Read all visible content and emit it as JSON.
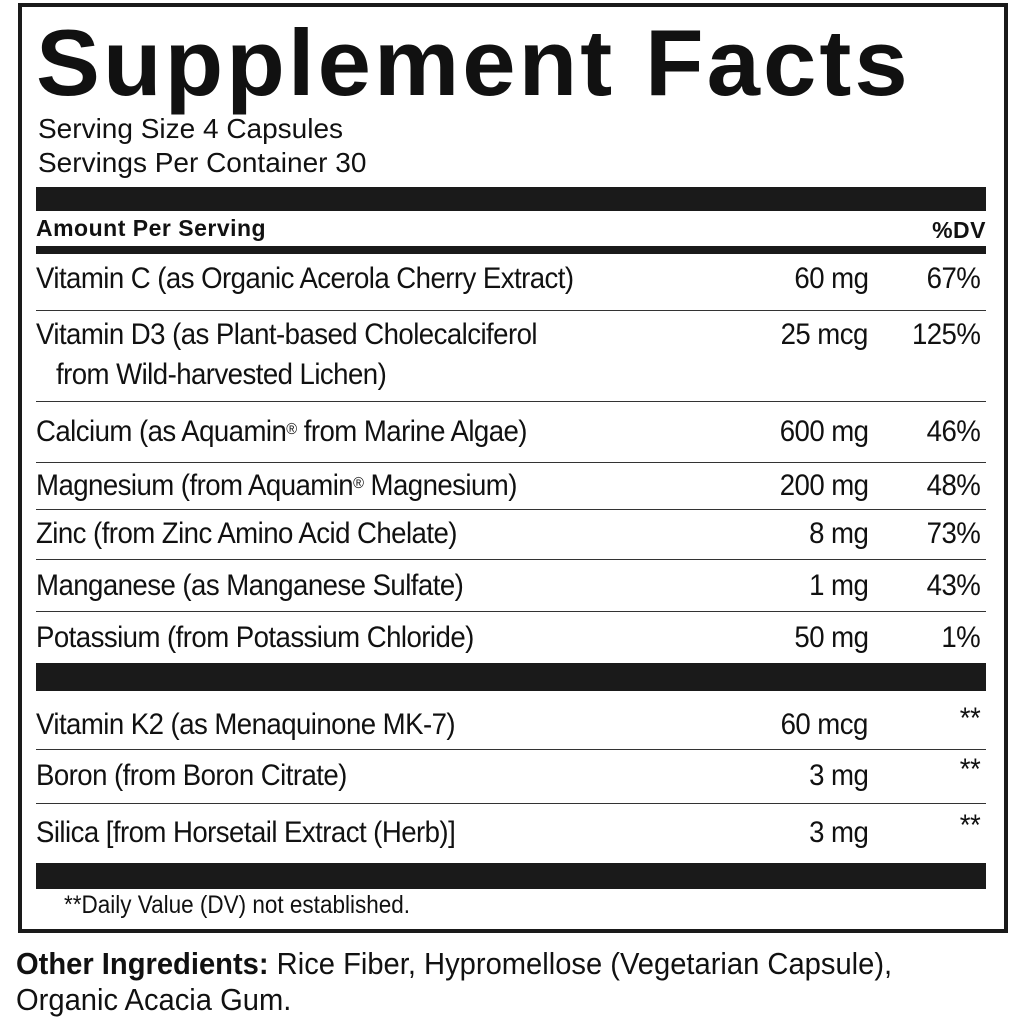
{
  "title": "Supplement Facts",
  "serving_size": "Serving Size 4 Capsules",
  "servings_per_container": "Servings Per Container 30",
  "header": {
    "amount": "Amount Per Serving",
    "dv": "%DV"
  },
  "rows": [
    {
      "name": "Vitamin C (as Organic Acerola Cherry Extract)",
      "amount": "60 mg",
      "dv": "67%"
    },
    {
      "name": "Vitamin D3 (as Plant-based Cholecalciferol",
      "name2": "from Wild-harvested Lichen)",
      "amount": "25 mcg",
      "dv": "125%"
    },
    {
      "name": "Calcium (as Aquamin",
      "sup": "®",
      "name_rest": " from Marine Algae)",
      "amount": "600 mg",
      "dv": "46%"
    },
    {
      "name": "Magnesium (from Aquamin",
      "sup": "®",
      "name_rest": " Magnesium)",
      "amount": "200 mg",
      "dv": "48%"
    },
    {
      "name": "Zinc (from Zinc Amino Acid Chelate)",
      "amount": "8 mg",
      "dv": "73%"
    },
    {
      "name": "Manganese (as Manganese Sulfate)",
      "amount": "1 mg",
      "dv": "43%"
    },
    {
      "name": "Potassium (from Potassium Chloride)",
      "amount": "50 mg",
      "dv": "1%"
    }
  ],
  "rows2": [
    {
      "name": "Vitamin K2 (as Menaquinone MK-7)",
      "amount": "60 mcg",
      "dv": "**"
    },
    {
      "name": "Boron (from Boron Citrate)",
      "amount": "3 mg",
      "dv": "**"
    },
    {
      "name": "Silica [from Horsetail Extract (Herb)]",
      "amount": "3 mg",
      "dv": "**"
    }
  ],
  "footnote": "**Daily Value (DV) not established.",
  "other_ingredients": {
    "label": "Other Ingredients:",
    "text": " Rice Fiber, Hypromellose (Vegetarian Capsule), Organic Acacia Gum."
  }
}
